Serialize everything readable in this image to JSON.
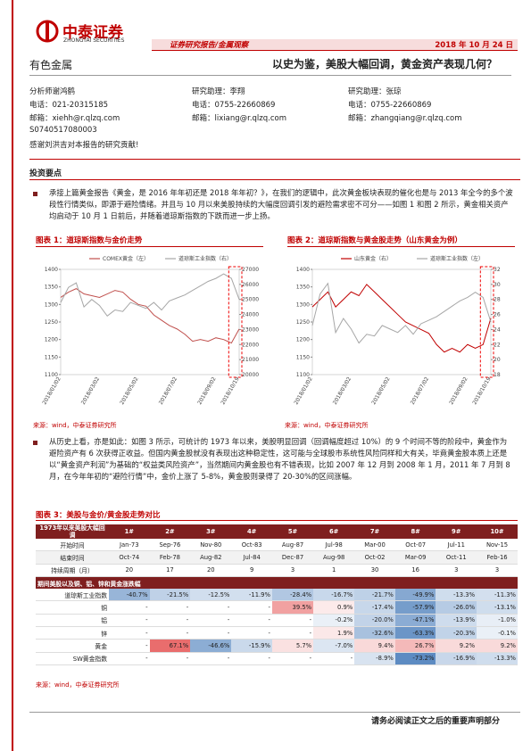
{
  "header": {
    "logo": "中泰证券",
    "logo_en": "ZHONGTAI SECURITIES",
    "report_type": "证券研究报告/金属观察",
    "date": "2018 年 10 月 24 日",
    "sector": "有色金属",
    "title": "以史为鉴，美股大幅回调，黄金资产表现几何？"
  },
  "analysts": [
    {
      "name": "分析师谢鸿鹤",
      "phone": "电话：021-20315185",
      "email": "邮箱：xiehh@r.qlzq.com",
      "cert": "S0740517080003",
      "thanks": "感谢刘洪吉对本报告的研究贡献!"
    },
    {
      "name": "研究助理：李翔",
      "phone": "电话：0755-22660869",
      "email": "邮箱：lixiang@r.qlzq.com"
    },
    {
      "name": "研究助理：张琼",
      "phone": "电话：0755-22660869",
      "email": "邮箱：zhangqiang@r.qlzq.com"
    }
  ],
  "section": "投资要点",
  "paragraphs": [
    "承接上篇黄金报告《黄金，是 2016 年年初还是 2018 年年初？》，在我们的逻辑中，此次黄金板块表现的催化也是与 2013 年全今的多个波段性行情类似，即源于避险情绪。并且与 10 月以来美股持续的大幅度回调引发的避险需求密不可分——如图 1 和图 2 所示，黄金相关资产均启动于 10 月 1 日前后，并随着道琼斯指数的下跌而进一步上扬。",
    "从历史上看，亦是如此：如图 3 所示，可统计的 1973 年以来，美股明显回调（回调幅度超过 10%）的 9 个时间不等的阶段中，黄金作为避险资产有 6 次获得正收益。但国内黄金股就没有表现出这种稳定性，这可能与全球股市系统性风险同样和大有关，毕竟黄金股本质上还是以“黄金资产利润”为基础的“权益类风险资产”，当然期间内黄金股也有不错表现，比如 2007 年 12 月到 2008 年 1 月，2011 年 7 月到 8 月，在今年年初的“避险行情”中，金价上涨了 5-8%，黄金股则录得了 20-30%的区间涨幅。"
  ],
  "figures": [
    {
      "type": "line",
      "title": "图表 1：道琼斯指数与金价走势",
      "source": "来源：wind，中泰证券研究所",
      "categories": [
        "2018/01/02",
        null,
        null,
        null,
        null,
        "2018/03/02",
        null,
        null,
        null,
        null,
        "2018/05/02",
        null,
        null,
        null,
        null,
        "2018/07/02",
        null,
        null,
        null,
        null,
        "2018/09/02",
        null,
        null,
        "2018/10/19"
      ],
      "series": [
        {
          "name": "COMEX黄金（左）",
          "color": "#c0504d",
          "values": [
            1320,
            1335,
            1345,
            1330,
            1325,
            1320,
            1330,
            1340,
            1335,
            1315,
            1300,
            1295,
            1270,
            1255,
            1240,
            1230,
            1215,
            1195,
            1200,
            1195,
            1205,
            1200,
            1190,
            1230
          ]
        },
        {
          "name": "道琼斯工业指数（右）",
          "color": "#a6a6a6",
          "axis": "y2",
          "values": [
            24800,
            25800,
            26100,
            24500,
            25000,
            24600,
            23900,
            24300,
            24200,
            24800,
            24600,
            24400,
            24800,
            24300,
            24900,
            25100,
            25300,
            25600,
            25900,
            26200,
            26400,
            26700,
            26400,
            25000
          ]
        }
      ],
      "ylim": [
        1100,
        1400
      ],
      "yticks": [
        1100,
        1150,
        1200,
        1250,
        1300,
        1350,
        1400
      ],
      "y2lim": [
        20000,
        27000
      ],
      "y2ticks": [
        20000,
        21000,
        22000,
        23000,
        24000,
        25000,
        26000,
        27000
      ]
    },
    {
      "type": "line",
      "title": "图表 2：道琼斯指数与黄金股走势（山东黄金为例）",
      "source": "来源：wind，中泰证券研究所",
      "categories": [
        "2018/01/02",
        null,
        null,
        null,
        null,
        "2018/03/02",
        null,
        null,
        null,
        null,
        "2018/05/02",
        null,
        null,
        null,
        null,
        "2018/07/02",
        null,
        null,
        null,
        null,
        "2018/09/02",
        null,
        null,
        "2018/10/19"
      ],
      "series": [
        {
          "name": "山东黄金（右）",
          "color": "#c00000",
          "axis": "y2",
          "values": [
            27,
            28,
            29,
            27,
            28,
            29,
            28.5,
            30,
            29,
            28,
            27,
            26,
            25,
            24.5,
            24,
            23.5,
            22,
            21,
            21.5,
            21,
            22,
            21.5,
            22,
            25.5
          ]
        },
        {
          "name": "道琼斯工业指数（左）",
          "color": "#a6a6a6",
          "values": [
            1240,
            1330,
            1360,
            1220,
            1260,
            1230,
            1190,
            1215,
            1210,
            1240,
            1230,
            1220,
            1240,
            1215,
            1245,
            1255,
            1265,
            1280,
            1295,
            1310,
            1320,
            1335,
            1320,
            1250
          ]
        }
      ],
      "ylim": [
        1100,
        1400
      ],
      "yticks": [
        1100,
        1150,
        1200,
        1250,
        1300,
        1350,
        1400
      ],
      "y2lim": [
        18,
        32
      ],
      "y2ticks": [
        18,
        20,
        22,
        24,
        26,
        28,
        30,
        32
      ]
    }
  ],
  "table": {
    "title": "图表 3：美股与金价/黄金股走势对比",
    "source": "来源：wind，中泰证券研究所",
    "corner": "1973年以来美股大幅回调",
    "columns": [
      "1#",
      "2#",
      "3#",
      "4#",
      "5#",
      "6#",
      "7#",
      "8#",
      "9#",
      "10#"
    ],
    "info_rows": [
      [
        "开始时间",
        "Jan-73",
        "Sep-76",
        "Nov-80",
        "Oct-83",
        "Aug-87",
        "Jul-98",
        "Mar-00",
        "Oct-07",
        "Jul-11",
        "Nov-15"
      ],
      [
        "结束时间",
        "Oct-74",
        "Feb-78",
        "Aug-82",
        "Jul-84",
        "Dec-87",
        "Aug-98",
        "Oct-02",
        "Mar-09",
        "Oct-11",
        "Feb-16"
      ],
      [
        "持续周期（月）",
        "20",
        "17",
        "20",
        "9",
        "3",
        "1",
        "30",
        "16",
        "3",
        "3"
      ]
    ],
    "section": "期间美股以及铜、铝、锌和黄金涨跌幅",
    "rows": [
      [
        "道琼斯工业指数",
        "-40.7%",
        "-21.5%",
        "-12.5%",
        "-11.9%",
        "-28.4%",
        "-16.7%",
        "-21.7%",
        "-49.9%",
        "-13.3%",
        "-11.3%"
      ],
      [
        "铜",
        "-",
        "-",
        "-",
        "-",
        "39.5%",
        "0.9%",
        "-17.4%",
        "-57.9%",
        "-26.0%",
        "-13.1%"
      ],
      [
        "铝",
        "-",
        "-",
        "-",
        "-",
        "-",
        "-0.2%",
        "-20.0%",
        "-47.1%",
        "-13.9%",
        "-1.0%"
      ],
      [
        "锌",
        "-",
        "-",
        "-",
        "-",
        "-",
        "1.9%",
        "-32.6%",
        "-63.3%",
        "-20.3%",
        "-0.1%"
      ],
      [
        "黄金",
        "-",
        "67.1%",
        "-46.6%",
        "-15.9%",
        "5.7%",
        "-7.0%",
        "9.4%",
        "26.7%",
        "9.2%",
        "9.2%"
      ],
      [
        "SW黄金指数",
        "-",
        "-",
        "-",
        "-",
        "-",
        "-",
        "-8.9%",
        "-73.2%",
        "-16.9%",
        "-13.3%"
      ]
    ]
  },
  "footer": "请务必阅读正文之后的重要声明部分"
}
